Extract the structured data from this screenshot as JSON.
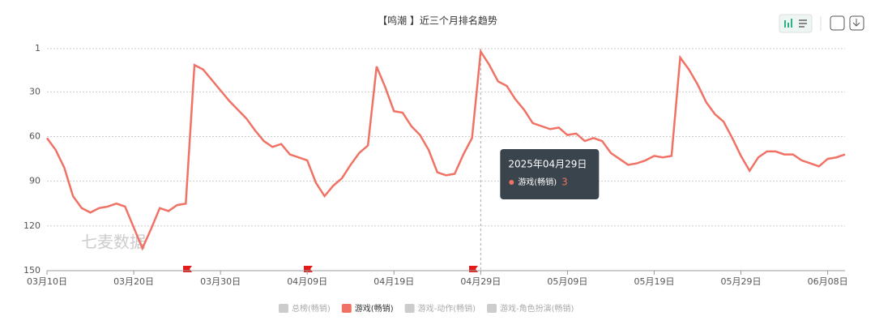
{
  "chart_data": {
    "type": "line",
    "title": "【鸣潮 】近三个月排名趋势",
    "watermark": "七麦数据",
    "categories": [
      "03月10日",
      null,
      null,
      null,
      null,
      null,
      null,
      null,
      null,
      null,
      "03月20日",
      null,
      null,
      null,
      null,
      null,
      null,
      null,
      null,
      null,
      "03月30日",
      null,
      null,
      null,
      null,
      null,
      null,
      null,
      null,
      null,
      "04月09日",
      null,
      null,
      null,
      null,
      null,
      null,
      null,
      null,
      null,
      "04月19日",
      null,
      null,
      null,
      null,
      null,
      null,
      null,
      null,
      null,
      "04月29日",
      null,
      null,
      null,
      null,
      null,
      null,
      null,
      null,
      null,
      "05月09日",
      null,
      null,
      null,
      null,
      null,
      null,
      null,
      null,
      null,
      "05月19日",
      null,
      null,
      null,
      null,
      null,
      null,
      null,
      null,
      null,
      "05月29日",
      null,
      null,
      null,
      null,
      null,
      null,
      null,
      null,
      null,
      "06月08日",
      null,
      null
    ],
    "series": [
      {
        "name": "游戏(畅销)",
        "color": "#f07265",
        "values": [
          61,
          69,
          81,
          100,
          108,
          111,
          108,
          107,
          105,
          107,
          121,
          135,
          122,
          108,
          110,
          106,
          105,
          12,
          15,
          22,
          29,
          36,
          42,
          48,
          56,
          63,
          67,
          65,
          72,
          74,
          76,
          91,
          100,
          93,
          88,
          79,
          71,
          66,
          13,
          27,
          43,
          44,
          53,
          59,
          69,
          84,
          86,
          85,
          72,
          61,
          3,
          12,
          23,
          26,
          35,
          42,
          51,
          53,
          55,
          54,
          59,
          58,
          63,
          61,
          63,
          71,
          75,
          79,
          78,
          76,
          73,
          74,
          73,
          7,
          15,
          25,
          37,
          45,
          50,
          61,
          73,
          83,
          74,
          70,
          70,
          72,
          72,
          76,
          78,
          80,
          75,
          74,
          72
        ]
      }
    ],
    "hidden_series": [
      "总榜(畅销)",
      "游戏-动作(畅销)",
      "游戏-角色扮演(畅销)"
    ],
    "tooltip": {
      "title": "2025年04月29日",
      "index": 50
    },
    "ylim": [
      150,
      1
    ],
    "yticks": [
      1,
      30,
      60,
      90,
      120,
      150
    ],
    "grid": true
  }
}
